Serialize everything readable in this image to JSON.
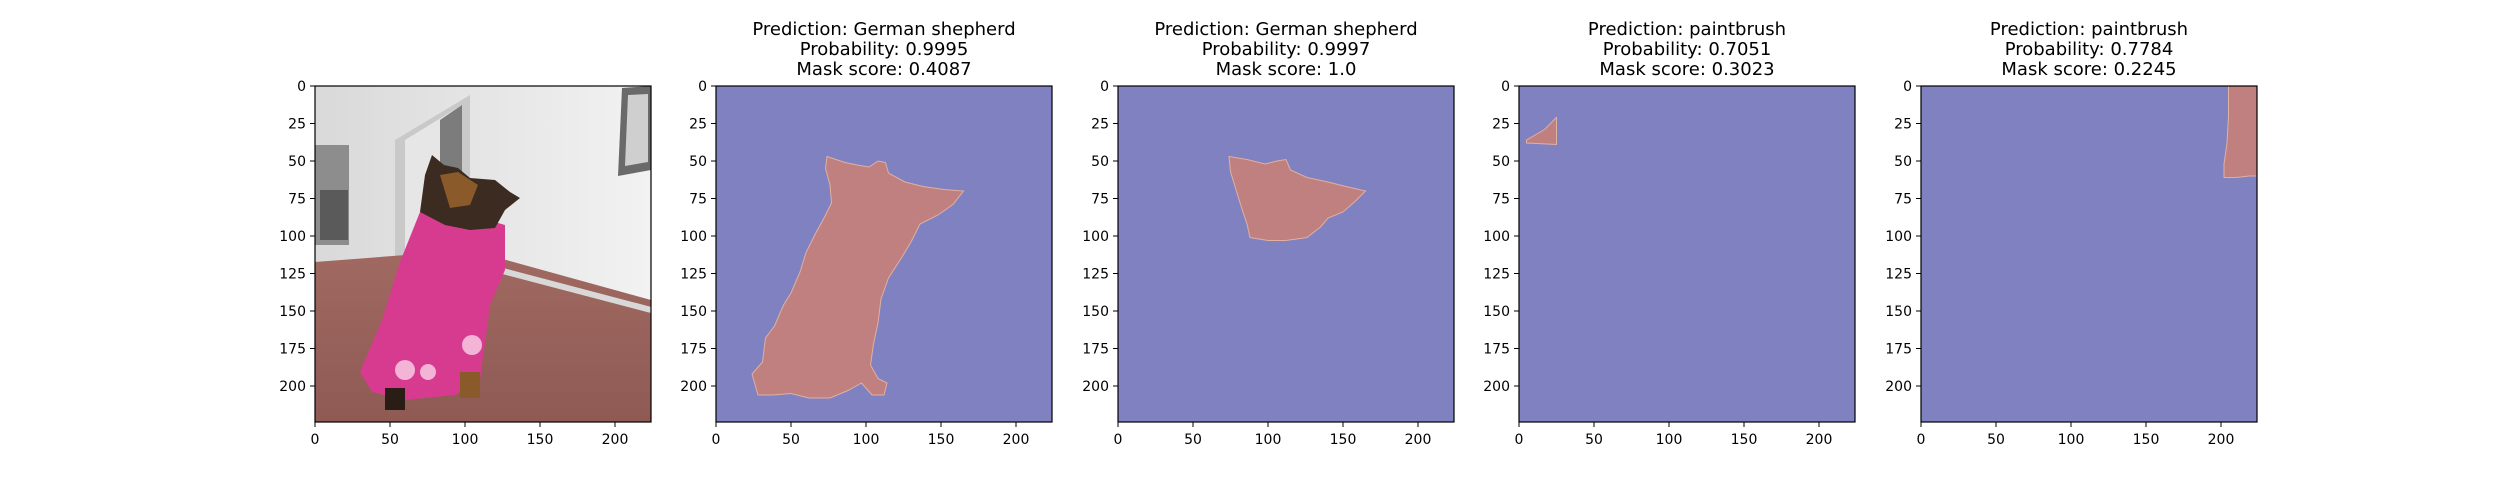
{
  "chart_data": [
    {
      "type": "image",
      "panel": "input-image",
      "title": [],
      "image_size": [
        224,
        224
      ],
      "xlim": [
        0,
        224
      ],
      "ylim": [
        224,
        0
      ],
      "xticks": [
        0,
        50,
        100,
        150,
        200
      ],
      "yticks": [
        0,
        25,
        50,
        75,
        100,
        125,
        150,
        175,
        200
      ],
      "content": "photo of a German shepherd wearing a pink towel in front of a white wall with a sliding door"
    },
    {
      "type": "heatmap",
      "panel": "mask-1",
      "title": [
        "Prediction: German shepherd",
        "Probability: 0.9995",
        "Mask score: 0.4087"
      ],
      "image_size": [
        224,
        224
      ],
      "xlim": [
        0,
        224
      ],
      "ylim": [
        224,
        0
      ],
      "xticks": [
        0,
        50,
        100,
        150,
        200
      ],
      "yticks": [
        0,
        25,
        50,
        75,
        100,
        125,
        150,
        175,
        200
      ],
      "colors": {
        "background": "#8081c0",
        "mask": "#c08080"
      },
      "mask_polygon": [
        [
          74,
          47
        ],
        [
          86,
          51
        ],
        [
          96,
          53
        ],
        [
          102,
          54
        ],
        [
          108,
          50
        ],
        [
          113,
          51
        ],
        [
          115,
          58
        ],
        [
          126,
          64
        ],
        [
          138,
          67
        ],
        [
          152,
          69
        ],
        [
          165,
          70
        ],
        [
          158,
          79
        ],
        [
          148,
          86
        ],
        [
          136,
          92
        ],
        [
          130,
          104
        ],
        [
          124,
          114
        ],
        [
          115,
          128
        ],
        [
          110,
          142
        ],
        [
          108,
          158
        ],
        [
          105,
          172
        ],
        [
          103,
          186
        ],
        [
          108,
          195
        ],
        [
          114,
          198
        ],
        [
          112,
          206
        ],
        [
          104,
          206
        ],
        [
          97,
          198
        ],
        [
          88,
          203
        ],
        [
          76,
          208
        ],
        [
          62,
          208
        ],
        [
          50,
          205
        ],
        [
          38,
          206
        ],
        [
          28,
          206
        ],
        [
          26,
          199
        ],
        [
          24,
          192
        ],
        [
          31,
          184
        ],
        [
          33,
          168
        ],
        [
          39,
          160
        ],
        [
          45,
          146
        ],
        [
          50,
          138
        ],
        [
          56,
          124
        ],
        [
          60,
          111
        ],
        [
          66,
          99
        ],
        [
          72,
          88
        ],
        [
          77,
          78
        ],
        [
          76,
          66
        ],
        [
          73,
          55
        ]
      ]
    },
    {
      "type": "heatmap",
      "panel": "mask-2",
      "title": [
        "Prediction: German shepherd",
        "Probability: 0.9997",
        "Mask score: 1.0"
      ],
      "image_size": [
        224,
        224
      ],
      "xlim": [
        0,
        224
      ],
      "ylim": [
        224,
        0
      ],
      "xticks": [
        0,
        50,
        100,
        150,
        200
      ],
      "yticks": [
        0,
        25,
        50,
        75,
        100,
        125,
        150,
        175,
        200
      ],
      "colors": {
        "background": "#8081c0",
        "mask": "#c08080"
      },
      "mask_polygon": [
        [
          74,
          47
        ],
        [
          86,
          49
        ],
        [
          98,
          52
        ],
        [
          106,
          50
        ],
        [
          112,
          49
        ],
        [
          115,
          56
        ],
        [
          126,
          61
        ],
        [
          140,
          64
        ],
        [
          152,
          67
        ],
        [
          165,
          70
        ],
        [
          158,
          77
        ],
        [
          150,
          84
        ],
        [
          140,
          88
        ],
        [
          135,
          94
        ],
        [
          126,
          101
        ],
        [
          112,
          103
        ],
        [
          100,
          103
        ],
        [
          88,
          101
        ],
        [
          86,
          92
        ],
        [
          82,
          80
        ],
        [
          78,
          67
        ],
        [
          75,
          57
        ]
      ]
    },
    {
      "type": "heatmap",
      "panel": "mask-3",
      "title": [
        "Prediction: paintbrush",
        "Probability: 0.7051",
        "Mask score: 0.3023"
      ],
      "image_size": [
        224,
        224
      ],
      "xlim": [
        0,
        224
      ],
      "ylim": [
        224,
        0
      ],
      "xticks": [
        0,
        50,
        100,
        150,
        200
      ],
      "yticks": [
        0,
        25,
        50,
        75,
        100,
        125,
        150,
        175,
        200
      ],
      "colors": {
        "background": "#8081c0",
        "mask": "#c08080"
      },
      "mask_polygon": [
        [
          5,
          36
        ],
        [
          17,
          29
        ],
        [
          25,
          21
        ],
        [
          25,
          39
        ],
        [
          5,
          38
        ]
      ]
    },
    {
      "type": "heatmap",
      "panel": "mask-4",
      "title": [
        "Prediction: paintbrush",
        "Probability: 0.7784",
        "Mask score: 0.2245"
      ],
      "image_size": [
        224,
        224
      ],
      "xlim": [
        0,
        224
      ],
      "ylim": [
        224,
        0
      ],
      "xticks": [
        0,
        50,
        100,
        150,
        200
      ],
      "yticks": [
        0,
        25,
        50,
        75,
        100,
        125,
        150,
        175,
        200
      ],
      "colors": {
        "background": "#8081c0",
        "mask": "#c08080"
      },
      "mask_polygon": [
        [
          205,
          0
        ],
        [
          224,
          0
        ],
        [
          224,
          60
        ],
        [
          219,
          60
        ],
        [
          210,
          61
        ],
        [
          202,
          61
        ],
        [
          202,
          52
        ],
        [
          204,
          38
        ],
        [
          205,
          20
        ]
      ]
    }
  ]
}
